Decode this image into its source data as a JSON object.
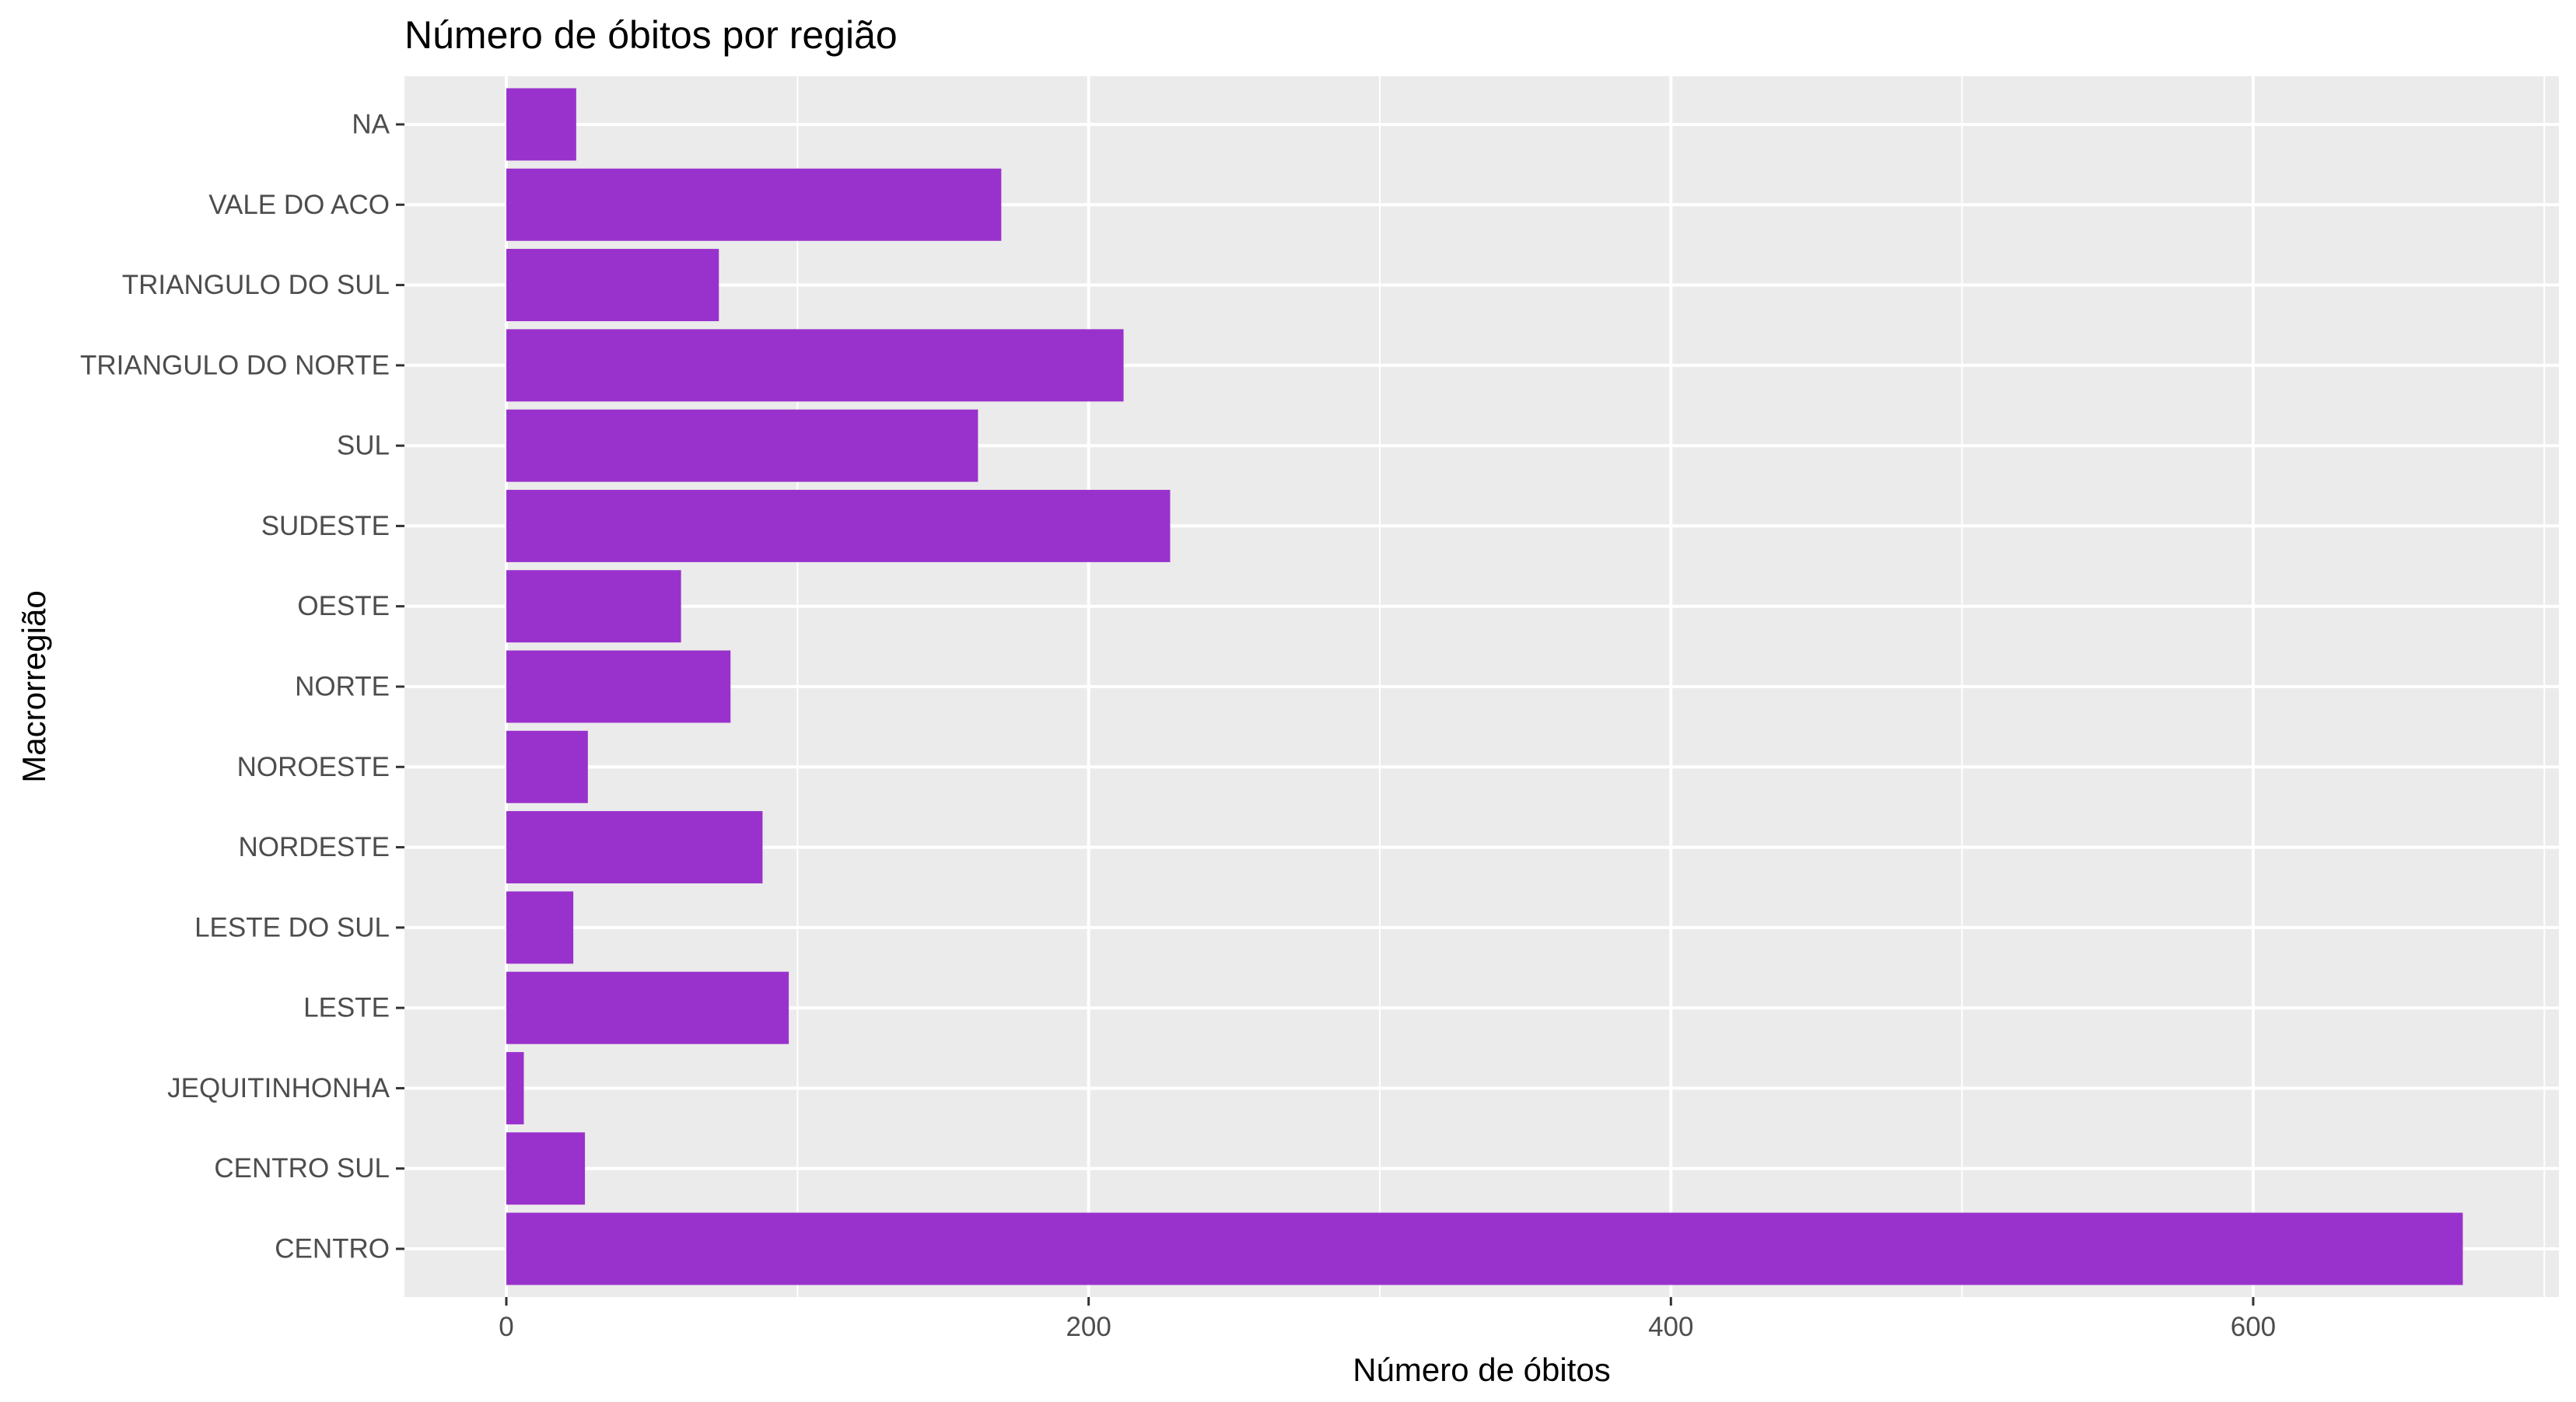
{
  "chart_data": {
    "type": "bar",
    "orientation": "horizontal",
    "title": "Número de óbitos por região",
    "xlabel": "Número de óbitos",
    "ylabel": "Macrorregião",
    "categories": [
      "CENTRO",
      "CENTRO SUL",
      "JEQUITINHONHA",
      "LESTE",
      "LESTE DO SUL",
      "NORDESTE",
      "NOROESTE",
      "NORTE",
      "OESTE",
      "SUDESTE",
      "SUL",
      "TRIANGULO DO NORTE",
      "TRIANGULO DO SUL",
      "VALE DO ACO",
      "NA"
    ],
    "values": [
      672,
      27,
      6,
      97,
      23,
      88,
      28,
      77,
      60,
      228,
      162,
      212,
      73,
      170,
      24
    ],
    "xticks": [
      0,
      200,
      400,
      600
    ],
    "xlim": [
      -35,
      705
    ],
    "grid": true,
    "bar_color": "#9932CC",
    "panel_color": "#EBEBEB",
    "grid_color": "#FFFFFF"
  }
}
